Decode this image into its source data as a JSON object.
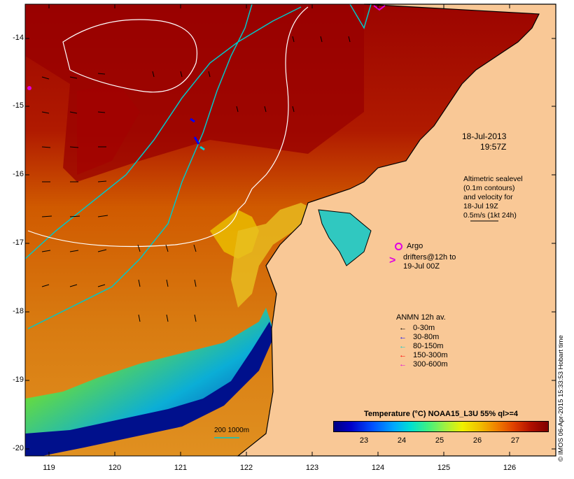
{
  "map": {
    "y_ticks": [
      "-14",
      "-15",
      "-16",
      "-17",
      "-18",
      "-19",
      "-20"
    ],
    "x_ticks": [
      "119",
      "120",
      "121",
      "122",
      "123",
      "124",
      "125",
      "126"
    ],
    "date_line1": "18-Jul-2013",
    "date_line2": "19:57Z",
    "altimetric_lines": [
      "Altimetric sealevel",
      "(0.1m contours)",
      "and velocity for",
      "18-Jul 19Z",
      "0.5m/s (1kt 24h)"
    ],
    "argo_label": "Argo",
    "drifters_line1": "drifters@12h to",
    "drifters_line2": "19-Jul 00Z",
    "anmn_title": "ANMN 12h av.",
    "anmn_items": [
      {
        "label": "0-30m",
        "color": "#000000"
      },
      {
        "label": "30-80m",
        "color": "#0000ff"
      },
      {
        "label": "80-150m",
        "color": "#00d0d0"
      },
      {
        "label": "150-300m",
        "color": "#ff0000"
      },
      {
        "label": "300-600m",
        "color": "#e000e0"
      }
    ],
    "colorbar_title": "Temperature (°C) NOAA15_L3U 55% ql>=4",
    "colorbar_ticks": [
      "23",
      "24",
      "25",
      "26",
      "27"
    ],
    "depth_contours_label": "200  1000m",
    "credit": "© IMOS 06-Apr-2015 15:33:53 Hobart time",
    "colors": {
      "land": "#f9c896",
      "warm_sea": "#a00000",
      "cool_sea": "#00008c",
      "bathymetry": "#00c8c8",
      "sealevel_contour": "#ffffff"
    }
  }
}
